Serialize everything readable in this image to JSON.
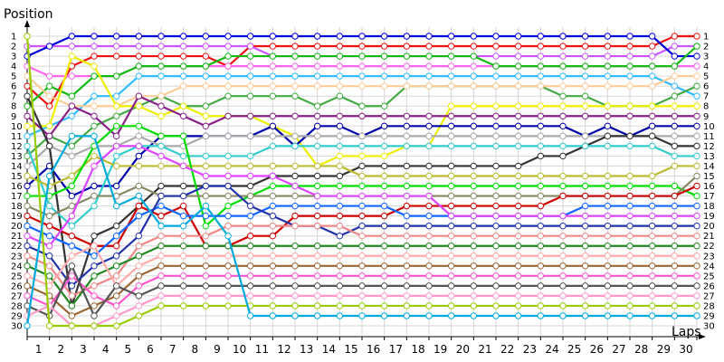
{
  "chart_data": {
    "type": "line",
    "ylabel": "Position",
    "xlabel": "Laps",
    "x": [
      0,
      1,
      2,
      3,
      4,
      5,
      6,
      7,
      8,
      9,
      10,
      11,
      12,
      13,
      14,
      15,
      16,
      17,
      18,
      19,
      20,
      21,
      22,
      23,
      24,
      25,
      26,
      27,
      28,
      29,
      30
    ],
    "x_tick_labels": [
      1,
      2,
      3,
      4,
      5,
      6,
      7,
      8,
      9,
      10,
      11,
      12,
      13,
      14,
      15,
      16,
      17,
      18,
      19,
      20,
      21,
      22,
      23,
      24,
      25,
      26,
      27,
      28,
      29,
      30
    ],
    "y_tick_labels": [
      1,
      2,
      3,
      4,
      5,
      6,
      7,
      8,
      9,
      10,
      11,
      12,
      13,
      14,
      15,
      16,
      17,
      18,
      19,
      20,
      21,
      22,
      23,
      24,
      25,
      26,
      27,
      28,
      29,
      30
    ],
    "xlim": [
      0,
      30
    ],
    "ylim": [
      1,
      30
    ],
    "y_inverted": true,
    "grid": true,
    "series": [
      {
        "color": "#ee1111",
        "values": [
          6,
          8,
          4,
          3,
          3,
          3,
          3,
          3,
          3,
          4,
          2,
          2,
          2,
          2,
          2,
          2,
          2,
          2,
          2,
          2,
          2,
          2,
          2,
          2,
          2,
          2,
          2,
          2,
          2,
          1,
          1
        ]
      },
      {
        "color": "#cc55ff",
        "values": [
          2,
          2,
          2,
          2,
          2,
          2,
          2,
          2,
          2,
          2,
          2,
          3,
          3,
          3,
          3,
          3,
          3,
          3,
          3,
          3,
          3,
          3,
          3,
          3,
          3,
          3,
          3,
          3,
          3,
          2,
          2
        ]
      },
      {
        "color": "#0000dd",
        "values": [
          3,
          2,
          1,
          1,
          1,
          1,
          1,
          1,
          1,
          1,
          1,
          1,
          1,
          1,
          1,
          1,
          1,
          1,
          1,
          1,
          1,
          1,
          1,
          1,
          1,
          1,
          1,
          1,
          1,
          3,
          3
        ]
      },
      {
        "color": "#ff66ee",
        "values": [
          4,
          5,
          5,
          5,
          5,
          4,
          4,
          4,
          4,
          4,
          4,
          4,
          4,
          4,
          4,
          4,
          4,
          4,
          4,
          4,
          4,
          4,
          4,
          4,
          4,
          4,
          4,
          4,
          4,
          4,
          4
        ]
      },
      {
        "color": "#11bb11",
        "values": [
          8,
          6,
          7,
          5,
          5,
          4,
          4,
          4,
          4,
          3,
          3,
          3,
          3,
          3,
          3,
          3,
          3,
          3,
          3,
          3,
          3,
          4,
          4,
          4,
          4,
          4,
          4,
          4,
          4,
          4,
          2
        ]
      },
      {
        "color": "#33bbff",
        "values": [
          11,
          10,
          9,
          7,
          7,
          5,
          5,
          5,
          5,
          5,
          5,
          5,
          5,
          5,
          5,
          5,
          5,
          5,
          5,
          5,
          5,
          5,
          5,
          5,
          5,
          5,
          5,
          5,
          5,
          6,
          7
        ]
      },
      {
        "color": "#44aa44",
        "values": [
          13,
          11,
          12,
          10,
          9,
          8,
          7,
          8,
          8,
          7,
          7,
          7,
          7,
          8,
          7,
          8,
          8,
          6,
          6,
          6,
          6,
          6,
          6,
          6,
          7,
          7,
          8,
          8,
          8,
          7,
          6
        ]
      },
      {
        "color": "#ffcc99",
        "values": [
          5,
          7,
          8,
          8,
          8,
          7,
          7,
          6,
          6,
          6,
          6,
          6,
          6,
          6,
          6,
          6,
          6,
          6,
          6,
          6,
          6,
          6,
          6,
          6,
          6,
          6,
          6,
          6,
          6,
          5,
          5
        ]
      },
      {
        "color": "#eeee00",
        "values": [
          10,
          10,
          3,
          4,
          8,
          8,
          9,
          8,
          9,
          9,
          9,
          10,
          11,
          14,
          13,
          13,
          13,
          12,
          12,
          8,
          8,
          8,
          8,
          8,
          8,
          8,
          8,
          8,
          8,
          8,
          8
        ]
      },
      {
        "color": "#882288",
        "values": [
          9,
          11,
          8,
          9,
          11,
          7,
          8,
          9,
          10,
          9,
          9,
          9,
          9,
          9,
          9,
          9,
          9,
          9,
          9,
          9,
          9,
          9,
          9,
          9,
          9,
          9,
          9,
          9,
          9,
          9,
          9
        ]
      },
      {
        "color": "#0000aa",
        "values": [
          16,
          14,
          17,
          16,
          16,
          13,
          11,
          11,
          11,
          11,
          11,
          10,
          12,
          10,
          10,
          11,
          10,
          10,
          10,
          10,
          10,
          10,
          10,
          10,
          10,
          11,
          10,
          11,
          10,
          10,
          10
        ]
      },
      {
        "color": "#aaaaaa",
        "values": [
          14,
          12,
          13,
          12,
          12,
          11,
          12,
          12,
          11,
          11,
          11,
          11,
          11,
          11,
          11,
          11,
          11,
          11,
          11,
          11,
          11,
          11,
          11,
          11,
          11,
          11,
          11,
          11,
          11,
          11,
          11
        ]
      },
      {
        "color": "#333333",
        "values": [
          7,
          12,
          28,
          21,
          20,
          18,
          16,
          16,
          16,
          16,
          16,
          15,
          15,
          15,
          15,
          14,
          14,
          14,
          14,
          14,
          14,
          14,
          14,
          13,
          13,
          12,
          11,
          11,
          11,
          12,
          12
        ]
      },
      {
        "color": "#33cccc",
        "values": [
          12,
          18,
          20,
          18,
          13,
          12,
          12,
          13,
          13,
          13,
          13,
          12,
          12,
          12,
          12,
          12,
          12,
          12,
          12,
          12,
          12,
          12,
          12,
          12,
          12,
          12,
          12,
          12,
          12,
          13,
          13
        ]
      },
      {
        "color": "#bbbb33",
        "values": [
          15,
          16,
          15,
          13,
          14,
          14,
          14,
          14,
          14,
          14,
          14,
          14,
          14,
          14,
          14,
          15,
          15,
          15,
          15,
          15,
          15,
          15,
          15,
          15,
          15,
          15,
          15,
          15,
          15,
          14,
          14
        ]
      },
      {
        "color": "#00dd00",
        "values": [
          17,
          17,
          16,
          12,
          10,
          10,
          11,
          11,
          20,
          18,
          17,
          16,
          16,
          16,
          16,
          16,
          16,
          16,
          16,
          16,
          16,
          16,
          16,
          16,
          16,
          16,
          16,
          16,
          16,
          16,
          17
        ]
      },
      {
        "color": "#888866",
        "values": [
          18,
          19,
          18,
          17,
          17,
          16,
          17,
          17,
          17,
          17,
          17,
          17,
          17,
          17,
          17,
          17,
          17,
          17,
          17,
          17,
          17,
          17,
          17,
          17,
          17,
          17,
          17,
          17,
          17,
          17,
          15
        ]
      },
      {
        "color": "#cc0000",
        "values": [
          19,
          20,
          21,
          22,
          22,
          18,
          19,
          18,
          22,
          22,
          21,
          21,
          19,
          19,
          19,
          19,
          19,
          18,
          18,
          18,
          18,
          18,
          18,
          18,
          17,
          17,
          17,
          17,
          17,
          17,
          16
        ]
      },
      {
        "color": "#1166ff",
        "values": [
          20,
          21,
          22,
          23,
          21,
          19,
          18,
          19,
          19,
          19,
          19,
          18,
          18,
          18,
          18,
          18,
          18,
          19,
          19,
          19,
          19,
          19,
          19,
          19,
          19,
          18,
          18,
          18,
          18,
          18,
          18
        ]
      },
      {
        "color": "#dd44ff",
        "values": [
          21,
          22,
          19,
          14,
          12,
          12,
          13,
          14,
          15,
          15,
          15,
          15,
          16,
          17,
          17,
          17,
          17,
          17,
          17,
          19,
          19,
          19,
          19,
          19,
          19,
          19,
          19,
          19,
          19,
          19,
          19
        ]
      },
      {
        "color": "#2233aa",
        "values": [
          22,
          23,
          26,
          24,
          23,
          21,
          17,
          17,
          16,
          16,
          18,
          19,
          20,
          20,
          21,
          20,
          20,
          20,
          20,
          20,
          20,
          20,
          20,
          20,
          20,
          20,
          20,
          20,
          20,
          20,
          20
        ]
      },
      {
        "color": "#ee8888",
        "values": [
          23,
          24,
          27,
          26,
          25,
          22,
          21,
          21,
          21,
          20,
          20,
          20,
          20,
          20,
          20,
          21,
          21,
          21,
          21,
          21,
          21,
          21,
          21,
          21,
          21,
          21,
          21,
          21,
          21,
          21,
          21
        ]
      },
      {
        "color": "#228822",
        "values": [
          24,
          25,
          28,
          25,
          24,
          23,
          22,
          22,
          22,
          22,
          22,
          22,
          22,
          22,
          22,
          22,
          22,
          22,
          22,
          22,
          22,
          22,
          22,
          22,
          22,
          22,
          22,
          22,
          22,
          22,
          22
        ]
      },
      {
        "color": "#ffaaaa",
        "values": [
          25,
          26,
          23,
          22,
          26,
          24,
          23,
          23,
          23,
          23,
          23,
          23,
          23,
          23,
          23,
          23,
          23,
          23,
          23,
          23,
          23,
          23,
          23,
          23,
          23,
          23,
          23,
          23,
          23,
          23,
          23
        ]
      },
      {
        "color": "#996633",
        "values": [
          26,
          27,
          29,
          28,
          27,
          25,
          24,
          24,
          24,
          24,
          24,
          24,
          24,
          24,
          24,
          24,
          24,
          24,
          24,
          24,
          24,
          24,
          24,
          24,
          24,
          24,
          24,
          24,
          24,
          24,
          24
        ]
      },
      {
        "color": "#ff55cc",
        "values": [
          27,
          28,
          25,
          27,
          28,
          26,
          25,
          25,
          25,
          25,
          25,
          25,
          25,
          25,
          25,
          25,
          25,
          25,
          25,
          25,
          25,
          25,
          25,
          25,
          25,
          25,
          25,
          25,
          25,
          25,
          25
        ]
      },
      {
        "color": "#555555",
        "values": [
          28,
          29,
          24,
          29,
          26,
          27,
          26,
          26,
          26,
          26,
          26,
          26,
          26,
          26,
          26,
          26,
          26,
          26,
          26,
          26,
          26,
          26,
          26,
          26,
          26,
          26,
          26,
          26,
          26,
          26,
          26
        ]
      },
      {
        "color": "#ff99cc",
        "values": [
          29,
          28,
          30,
          30,
          29,
          28,
          27,
          27,
          27,
          27,
          27,
          27,
          27,
          27,
          27,
          27,
          27,
          27,
          27,
          27,
          27,
          27,
          27,
          27,
          27,
          27,
          27,
          27,
          27,
          27,
          27
        ]
      },
      {
        "color": "#99cc00",
        "values": [
          1,
          30,
          30,
          30,
          30,
          29,
          28,
          28,
          28,
          28,
          28,
          28,
          28,
          28,
          28,
          28,
          28,
          28,
          28,
          28,
          28,
          28,
          28,
          28,
          28,
          28,
          28,
          28,
          28,
          28,
          28
        ]
      },
      {
        "color": "#00aadd",
        "values": [
          30,
          15,
          11,
          11,
          18,
          17,
          20,
          20,
          18,
          21,
          29,
          29,
          29,
          29,
          29,
          29,
          29,
          29,
          29,
          29,
          29,
          29,
          29,
          29,
          29,
          29,
          29,
          29,
          29,
          29,
          29
        ]
      }
    ]
  }
}
